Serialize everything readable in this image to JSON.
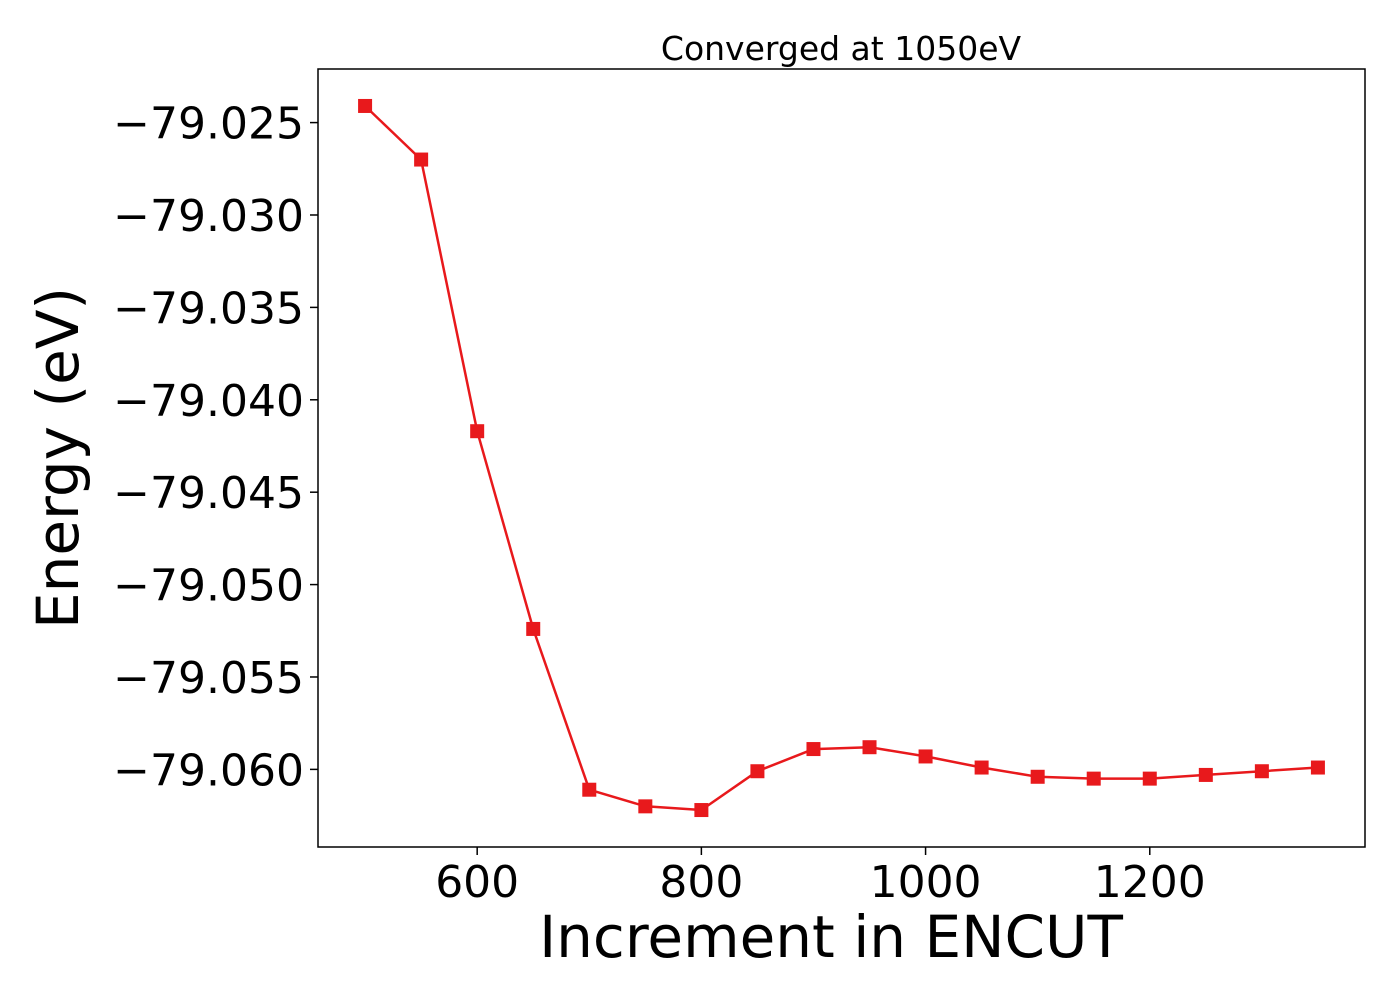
{
  "chart_data": {
    "type": "line",
    "title": "Converged at 1050eV",
    "xlabel": "Increment in ENCUT",
    "ylabel": "Energy (eV)",
    "xlim": [
      458,
      1392
    ],
    "ylim": [
      -79.0642,
      -79.0221
    ],
    "xticks": [
      600,
      800,
      1000,
      1200
    ],
    "xtick_labels": [
      "600",
      "800",
      "1000",
      "1200"
    ],
    "yticks": [
      -79.025,
      -79.03,
      -79.035,
      -79.04,
      -79.045,
      -79.05,
      -79.055,
      -79.06
    ],
    "ytick_labels": [
      "−79.025",
      "−79.030",
      "−79.035",
      "−79.040",
      "−79.045",
      "−79.050",
      "−79.055",
      "−79.060"
    ],
    "grid": false,
    "series": [
      {
        "color": "#e8191c",
        "marker": "square",
        "x": [
          500,
          550,
          600,
          650,
          700,
          750,
          800,
          850,
          900,
          950,
          1000,
          1050,
          1100,
          1150,
          1200,
          1250,
          1300,
          1350
        ],
        "y": [
          -79.0241,
          -79.027,
          -79.0417,
          -79.0524,
          -79.0611,
          -79.062,
          -79.0622,
          -79.0601,
          -79.0589,
          -79.0588,
          -79.0593,
          -79.0599,
          -79.0604,
          -79.0605,
          -79.0605,
          -79.0603,
          -79.0601,
          -79.0599
        ]
      }
    ]
  }
}
